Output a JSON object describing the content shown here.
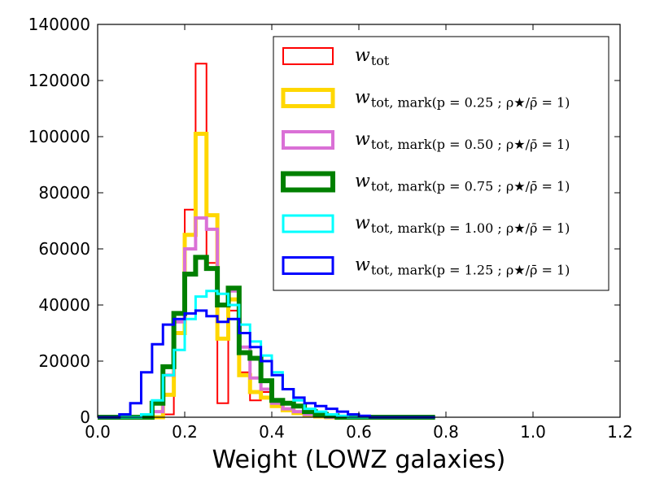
{
  "chart_data": {
    "type": "histogram",
    "title": "",
    "xlabel": "Weight (LOWZ galaxies)",
    "ylabel": "",
    "xlim": [
      0.0,
      1.2
    ],
    "ylim": [
      0,
      140000
    ],
    "xticks": [
      "0.0",
      "0.2",
      "0.4",
      "0.6",
      "0.8",
      "1.0",
      "1.2"
    ],
    "yticks": [
      "0",
      "20000",
      "40000",
      "60000",
      "80000",
      "100000",
      "120000",
      "140000"
    ],
    "grid": false,
    "legend_position": "top-right",
    "bin_edges": [
      0.0,
      0.025,
      0.05,
      0.075,
      0.1,
      0.125,
      0.15,
      0.175,
      0.2,
      0.225,
      0.25,
      0.275,
      0.3,
      0.325,
      0.35,
      0.375,
      0.4,
      0.425,
      0.45,
      0.475,
      0.5,
      0.525,
      0.55,
      0.575,
      0.6,
      0.625,
      0.65,
      0.675,
      0.7,
      0.725,
      0.75,
      0.775
    ],
    "series": [
      {
        "name": "w_tot",
        "legend_main": "w",
        "legend_sub": "tot",
        "color": "#ff0000",
        "stroke_width": 2,
        "values": [
          0,
          0,
          0,
          0,
          0,
          0,
          1000,
          30000,
          74000,
          126000,
          55000,
          5000,
          38000,
          16000,
          6000,
          9000,
          5000,
          3000,
          2000,
          1000,
          500,
          0,
          0,
          0,
          0,
          0,
          0,
          0,
          0,
          0,
          0
        ]
      },
      {
        "name": "w_tot,mark(p=0.25 ; ρ★/ρ̄=1)",
        "legend_main": "w",
        "legend_sub": "tot, mark(p = 0.25 ; ρ★/ρ̄ = 1)",
        "color": "#ffd700",
        "stroke_width": 5,
        "values": [
          0,
          0,
          0,
          0,
          0,
          0,
          8000,
          30000,
          65000,
          101000,
          72000,
          28000,
          42000,
          15000,
          9000,
          7000,
          4000,
          2500,
          1500,
          800,
          300,
          0,
          0,
          0,
          0,
          0,
          0,
          0,
          0,
          0,
          0
        ]
      },
      {
        "name": "w_tot,mark(p=0.50 ; ρ★/ρ̄=1)",
        "legend_main": "w",
        "legend_sub": "tot, mark(p = 0.50 ; ρ★/ρ̄ = 1)",
        "color": "#da70d6",
        "stroke_width": 4,
        "values": [
          0,
          0,
          0,
          0,
          0,
          2000,
          15000,
          34000,
          60000,
          71000,
          67000,
          40000,
          45000,
          25000,
          14000,
          10000,
          5000,
          3000,
          2000,
          1000,
          500,
          0,
          0,
          0,
          0,
          0,
          0,
          0,
          0,
          0,
          0
        ]
      },
      {
        "name": "w_tot,mark(p=0.75 ; ρ★/ρ̄=1)",
        "legend_main": "w",
        "legend_sub": "tot, mark(p = 0.75 ; ρ★/ρ̄ = 1)",
        "color": "#008000",
        "stroke_width": 6,
        "values": [
          0,
          0,
          0,
          0,
          0,
          5000,
          18000,
          37000,
          51000,
          57000,
          53000,
          40000,
          46000,
          23000,
          21000,
          13000,
          6000,
          5000,
          4000,
          2000,
          1000,
          500,
          0,
          0,
          0,
          0,
          0,
          0,
          0,
          0,
          0
        ]
      },
      {
        "name": "w_tot,mark(p=1.00 ; ρ★/ρ̄=1)",
        "legend_main": "w",
        "legend_sub": "tot, mark(p = 1.00 ; ρ★/ρ̄ = 1)",
        "color": "#00ffff",
        "stroke_width": 3,
        "values": [
          0,
          0,
          0,
          0,
          1000,
          6000,
          15000,
          24000,
          35000,
          43000,
          45000,
          44000,
          40000,
          33000,
          27000,
          22000,
          16000,
          10000,
          6000,
          3000,
          2000,
          1000,
          500,
          0,
          0,
          0,
          0,
          0,
          0,
          0,
          0
        ]
      },
      {
        "name": "w_tot,mark(p=1.25 ; ρ★/ρ̄=1)",
        "legend_main": "w",
        "legend_sub": "tot, mark(p = 1.25 ; ρ★/ρ̄ = 1)",
        "color": "#0000ff",
        "stroke_width": 3,
        "values": [
          0,
          0,
          1000,
          5000,
          16000,
          26000,
          33000,
          35000,
          37000,
          38000,
          36000,
          34000,
          35000,
          30000,
          25000,
          20000,
          15000,
          10000,
          7000,
          5000,
          4000,
          3000,
          2000,
          1000,
          500,
          0,
          0,
          0,
          0,
          0,
          0
        ]
      }
    ]
  }
}
